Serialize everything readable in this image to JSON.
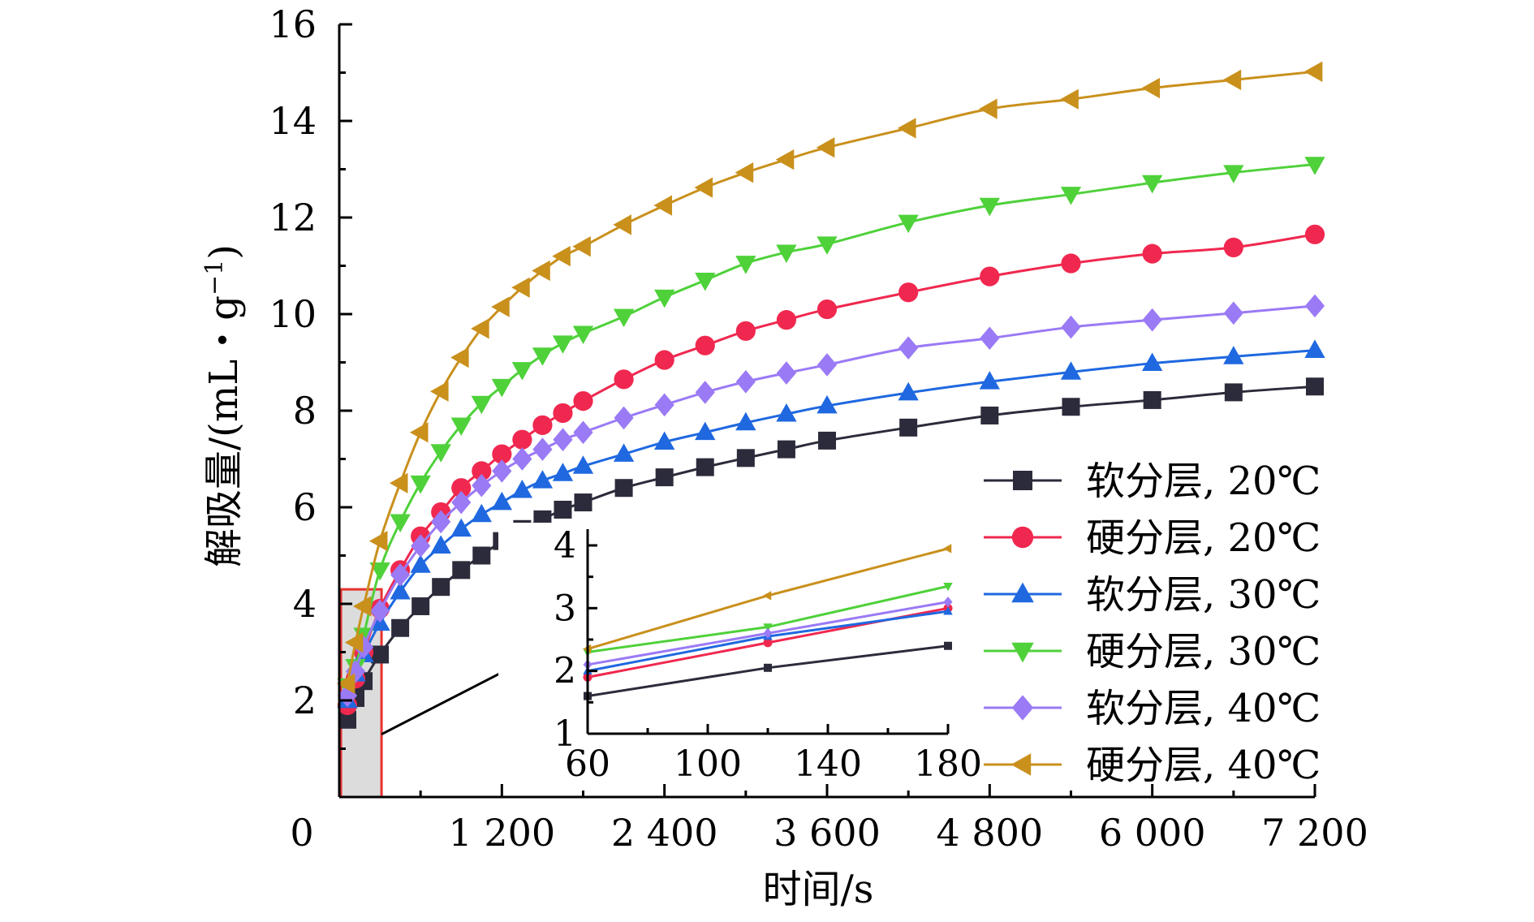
{
  "chart_data": {
    "type": "line",
    "xlabel": "时间/s",
    "ylabel_parts": {
      "main": "解吸量/(mL・g",
      "sup": "−1",
      "close": ")"
    },
    "xlim": [
      0,
      7200
    ],
    "ylim": [
      0,
      16
    ],
    "x_ticks": [
      {
        "value": 0,
        "label": "0"
      },
      {
        "value": 1200,
        "label": "1 200"
      },
      {
        "value": 2400,
        "label": "2 400"
      },
      {
        "value": 3600,
        "label": "3 600"
      },
      {
        "value": 4800,
        "label": "4 800"
      },
      {
        "value": 6000,
        "label": "6 000"
      },
      {
        "value": 7200,
        "label": "7 200"
      }
    ],
    "y_ticks": [
      {
        "value": 2,
        "label": "2"
      },
      {
        "value": 4,
        "label": "4"
      },
      {
        "value": 6,
        "label": "6"
      },
      {
        "value": 8,
        "label": "8"
      },
      {
        "value": 10,
        "label": "10"
      },
      {
        "value": 12,
        "label": "12"
      },
      {
        "value": 14,
        "label": "14"
      },
      {
        "value": 16,
        "label": "16"
      }
    ],
    "legend_position": "right",
    "zoom_region": {
      "xlim": [
        0,
        300
      ],
      "ylim": [
        0,
        4.3
      ]
    },
    "series": [
      {
        "name": "软分层, 20℃",
        "color": "#2b2b3b",
        "marker": "square",
        "x": [
          60,
          120,
          180,
          300,
          450,
          600,
          750,
          900,
          1050,
          1200,
          1350,
          1500,
          1650,
          1800,
          2100,
          2400,
          2700,
          3000,
          3300,
          3600,
          4200,
          4800,
          5400,
          6000,
          6600,
          7200
        ],
        "y": [
          1.6,
          2.05,
          2.4,
          2.95,
          3.5,
          3.95,
          4.35,
          4.7,
          5.0,
          5.3,
          5.55,
          5.75,
          5.95,
          6.1,
          6.4,
          6.62,
          6.83,
          7.02,
          7.2,
          7.38,
          7.65,
          7.9,
          8.08,
          8.22,
          8.38,
          8.5
        ]
      },
      {
        "name": "硬分层, 20℃",
        "color": "#f0284f",
        "marker": "circle",
        "x": [
          60,
          120,
          180,
          300,
          450,
          600,
          750,
          900,
          1050,
          1200,
          1350,
          1500,
          1650,
          1800,
          2100,
          2400,
          2700,
          3000,
          3300,
          3600,
          4200,
          4800,
          5400,
          6000,
          6600,
          7200
        ],
        "y": [
          1.9,
          2.45,
          3.0,
          3.9,
          4.7,
          5.4,
          5.9,
          6.4,
          6.75,
          7.1,
          7.4,
          7.7,
          7.95,
          8.2,
          8.65,
          9.05,
          9.35,
          9.65,
          9.88,
          10.1,
          10.45,
          10.78,
          11.05,
          11.25,
          11.38,
          11.65
        ]
      },
      {
        "name": "软分层, 30℃",
        "color": "#1f68e0",
        "marker": "triangle-up",
        "x": [
          60,
          120,
          180,
          300,
          450,
          600,
          750,
          900,
          1050,
          1200,
          1350,
          1500,
          1650,
          1800,
          2100,
          2400,
          2700,
          3000,
          3300,
          3600,
          4200,
          4800,
          5400,
          6000,
          6600,
          7200
        ],
        "y": [
          2.0,
          2.55,
          2.95,
          3.6,
          4.25,
          4.8,
          5.2,
          5.55,
          5.85,
          6.1,
          6.35,
          6.55,
          6.7,
          6.85,
          7.1,
          7.35,
          7.55,
          7.75,
          7.93,
          8.1,
          8.37,
          8.6,
          8.8,
          8.98,
          9.12,
          9.25
        ]
      },
      {
        "name": "硬分层, 30℃",
        "color": "#4fd13a",
        "marker": "triangle-down",
        "x": [
          60,
          120,
          180,
          300,
          450,
          600,
          750,
          900,
          1050,
          1200,
          1350,
          1500,
          1650,
          1800,
          2100,
          2400,
          2700,
          3000,
          3300,
          3600,
          4200,
          4800,
          5400,
          6000,
          6600,
          7200
        ],
        "y": [
          2.3,
          2.7,
          3.35,
          4.7,
          5.7,
          6.5,
          7.15,
          7.7,
          8.15,
          8.5,
          8.85,
          9.15,
          9.4,
          9.6,
          9.95,
          10.35,
          10.7,
          11.05,
          11.28,
          11.45,
          11.9,
          12.25,
          12.48,
          12.72,
          12.93,
          13.1
        ]
      },
      {
        "name": "软分层, 40℃",
        "color": "#9a7af5",
        "marker": "diamond",
        "x": [
          60,
          120,
          180,
          300,
          450,
          600,
          750,
          900,
          1050,
          1200,
          1350,
          1500,
          1650,
          1800,
          2100,
          2400,
          2700,
          3000,
          3300,
          3600,
          4200,
          4800,
          5400,
          6000,
          6600,
          7200
        ],
        "y": [
          2.1,
          2.6,
          3.1,
          3.85,
          4.6,
          5.2,
          5.7,
          6.1,
          6.45,
          6.75,
          7.0,
          7.2,
          7.4,
          7.55,
          7.85,
          8.12,
          8.38,
          8.6,
          8.78,
          8.95,
          9.3,
          9.5,
          9.73,
          9.88,
          10.02,
          10.17
        ]
      },
      {
        "name": "硬分层, 40℃",
        "color": "#c9901c",
        "marker": "triangle-left",
        "x": [
          60,
          120,
          180,
          300,
          450,
          600,
          750,
          900,
          1050,
          1200,
          1350,
          1500,
          1650,
          1800,
          2100,
          2400,
          2700,
          3000,
          3300,
          3600,
          4200,
          4800,
          5400,
          6000,
          6600,
          7200
        ],
        "y": [
          2.35,
          3.2,
          3.95,
          5.3,
          6.5,
          7.55,
          8.4,
          9.1,
          9.7,
          10.15,
          10.55,
          10.9,
          11.2,
          11.4,
          11.85,
          12.25,
          12.62,
          12.93,
          13.2,
          13.45,
          13.85,
          14.25,
          14.45,
          14.68,
          14.85,
          15.02
        ]
      }
    ],
    "inset": {
      "xlim": [
        60,
        180
      ],
      "ylim": [
        1,
        4
      ],
      "x_ticks": [
        {
          "value": 60,
          "label": "60"
        },
        {
          "value": 100,
          "label": "100"
        },
        {
          "value": 140,
          "label": "140"
        },
        {
          "value": 180,
          "label": "180"
        }
      ],
      "y_ticks": [
        {
          "value": 1,
          "label": "1"
        },
        {
          "value": 2,
          "label": "2"
        },
        {
          "value": 3,
          "label": "3"
        },
        {
          "value": 4,
          "label": "4"
        }
      ],
      "x": [
        60,
        120,
        180
      ]
    }
  }
}
